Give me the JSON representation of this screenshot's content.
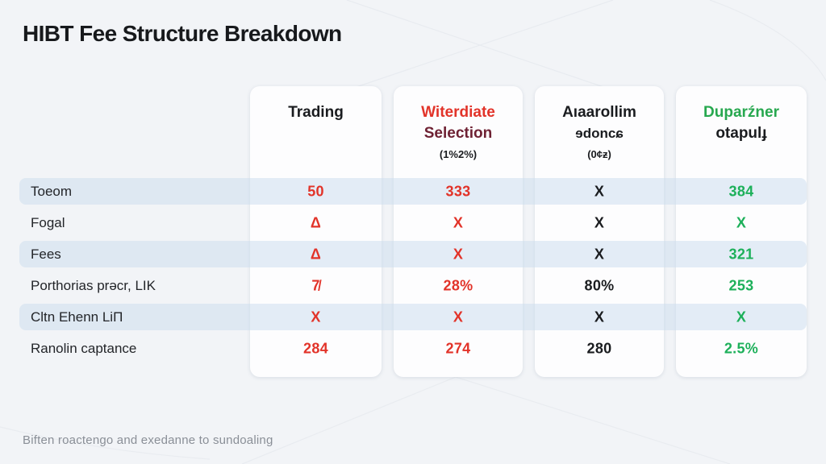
{
  "title": "HIBT Fee Structure Breakdown",
  "footer": "Biften roactengo and exedanne to sundoaling",
  "colors": {
    "red": "#e23329",
    "dark_red": "#6e2133",
    "green": "#1db05a",
    "green_header": "#27a84f",
    "black": "#1a1c1f",
    "label": "#232529",
    "muted": "#8a8f97",
    "card": "#fdfdfe",
    "background": "#f2f4f7",
    "stripe": "rgba(206,222,239,0.55)"
  },
  "table": {
    "columns": [
      {
        "id": "trading",
        "header_lines": [
          {
            "text": "Trading",
            "color": "black",
            "size": "lg"
          }
        ]
      },
      {
        "id": "witerdiate-selection",
        "header_lines": [
          {
            "text": "Witerdiate",
            "color": "red",
            "size": "lg"
          },
          {
            "text": "Selection",
            "color": "dark_red",
            "size": "lg"
          },
          {
            "text": "(1%2%)",
            "color": "black",
            "size": "sm"
          }
        ]
      },
      {
        "id": "aaarollim",
        "header_lines": [
          {
            "text": "Aıaarollim",
            "color": "black",
            "size": "lg"
          },
          {
            "text": "ɘdoncɕ",
            "color": "black",
            "size": "md"
          },
          {
            "text": "(0¢ƶ)",
            "color": "black",
            "size": "sm"
          }
        ]
      },
      {
        "id": "duparzner",
        "header_lines": [
          {
            "text": "Duparźner",
            "color": "green_header",
            "size": "lg"
          },
          {
            "text": "otapulɟ",
            "color": "black",
            "size": "lg"
          }
        ]
      }
    ],
    "rows": [
      {
        "label": "Toeom",
        "striped": true,
        "values": [
          {
            "text": "50",
            "color": "red"
          },
          {
            "text": "333",
            "color": "red"
          },
          {
            "text": "X",
            "color": "black"
          },
          {
            "text": "384",
            "color": "green"
          }
        ]
      },
      {
        "label": "Fogal",
        "striped": false,
        "values": [
          {
            "text": "Δ",
            "color": "red"
          },
          {
            "text": "X",
            "color": "red"
          },
          {
            "text": "X",
            "color": "black"
          },
          {
            "text": "X",
            "color": "green"
          }
        ]
      },
      {
        "label": "Fees",
        "striped": true,
        "values": [
          {
            "text": "Δ",
            "color": "red"
          },
          {
            "text": "X",
            "color": "red"
          },
          {
            "text": "X",
            "color": "black"
          },
          {
            "text": "321",
            "color": "green"
          }
        ]
      },
      {
        "label": "Porthorias prəcr, LIK",
        "striped": false,
        "values": [
          {
            "text": "7̸",
            "color": "red"
          },
          {
            "text": "28%",
            "color": "red"
          },
          {
            "text": "80%",
            "color": "black"
          },
          {
            "text": "253",
            "color": "green"
          }
        ]
      },
      {
        "label": "Cltn Ehenn LiΠ",
        "striped": true,
        "values": [
          {
            "text": "X",
            "color": "red"
          },
          {
            "text": "X",
            "color": "red"
          },
          {
            "text": "X",
            "color": "black"
          },
          {
            "text": "X",
            "color": "green"
          }
        ]
      },
      {
        "label": "Ranolin captance",
        "striped": false,
        "values": [
          {
            "text": "284",
            "color": "red"
          },
          {
            "text": "274",
            "color": "red"
          },
          {
            "text": "280",
            "color": "black"
          },
          {
            "text": "2.5%",
            "color": "green"
          }
        ]
      }
    ]
  }
}
